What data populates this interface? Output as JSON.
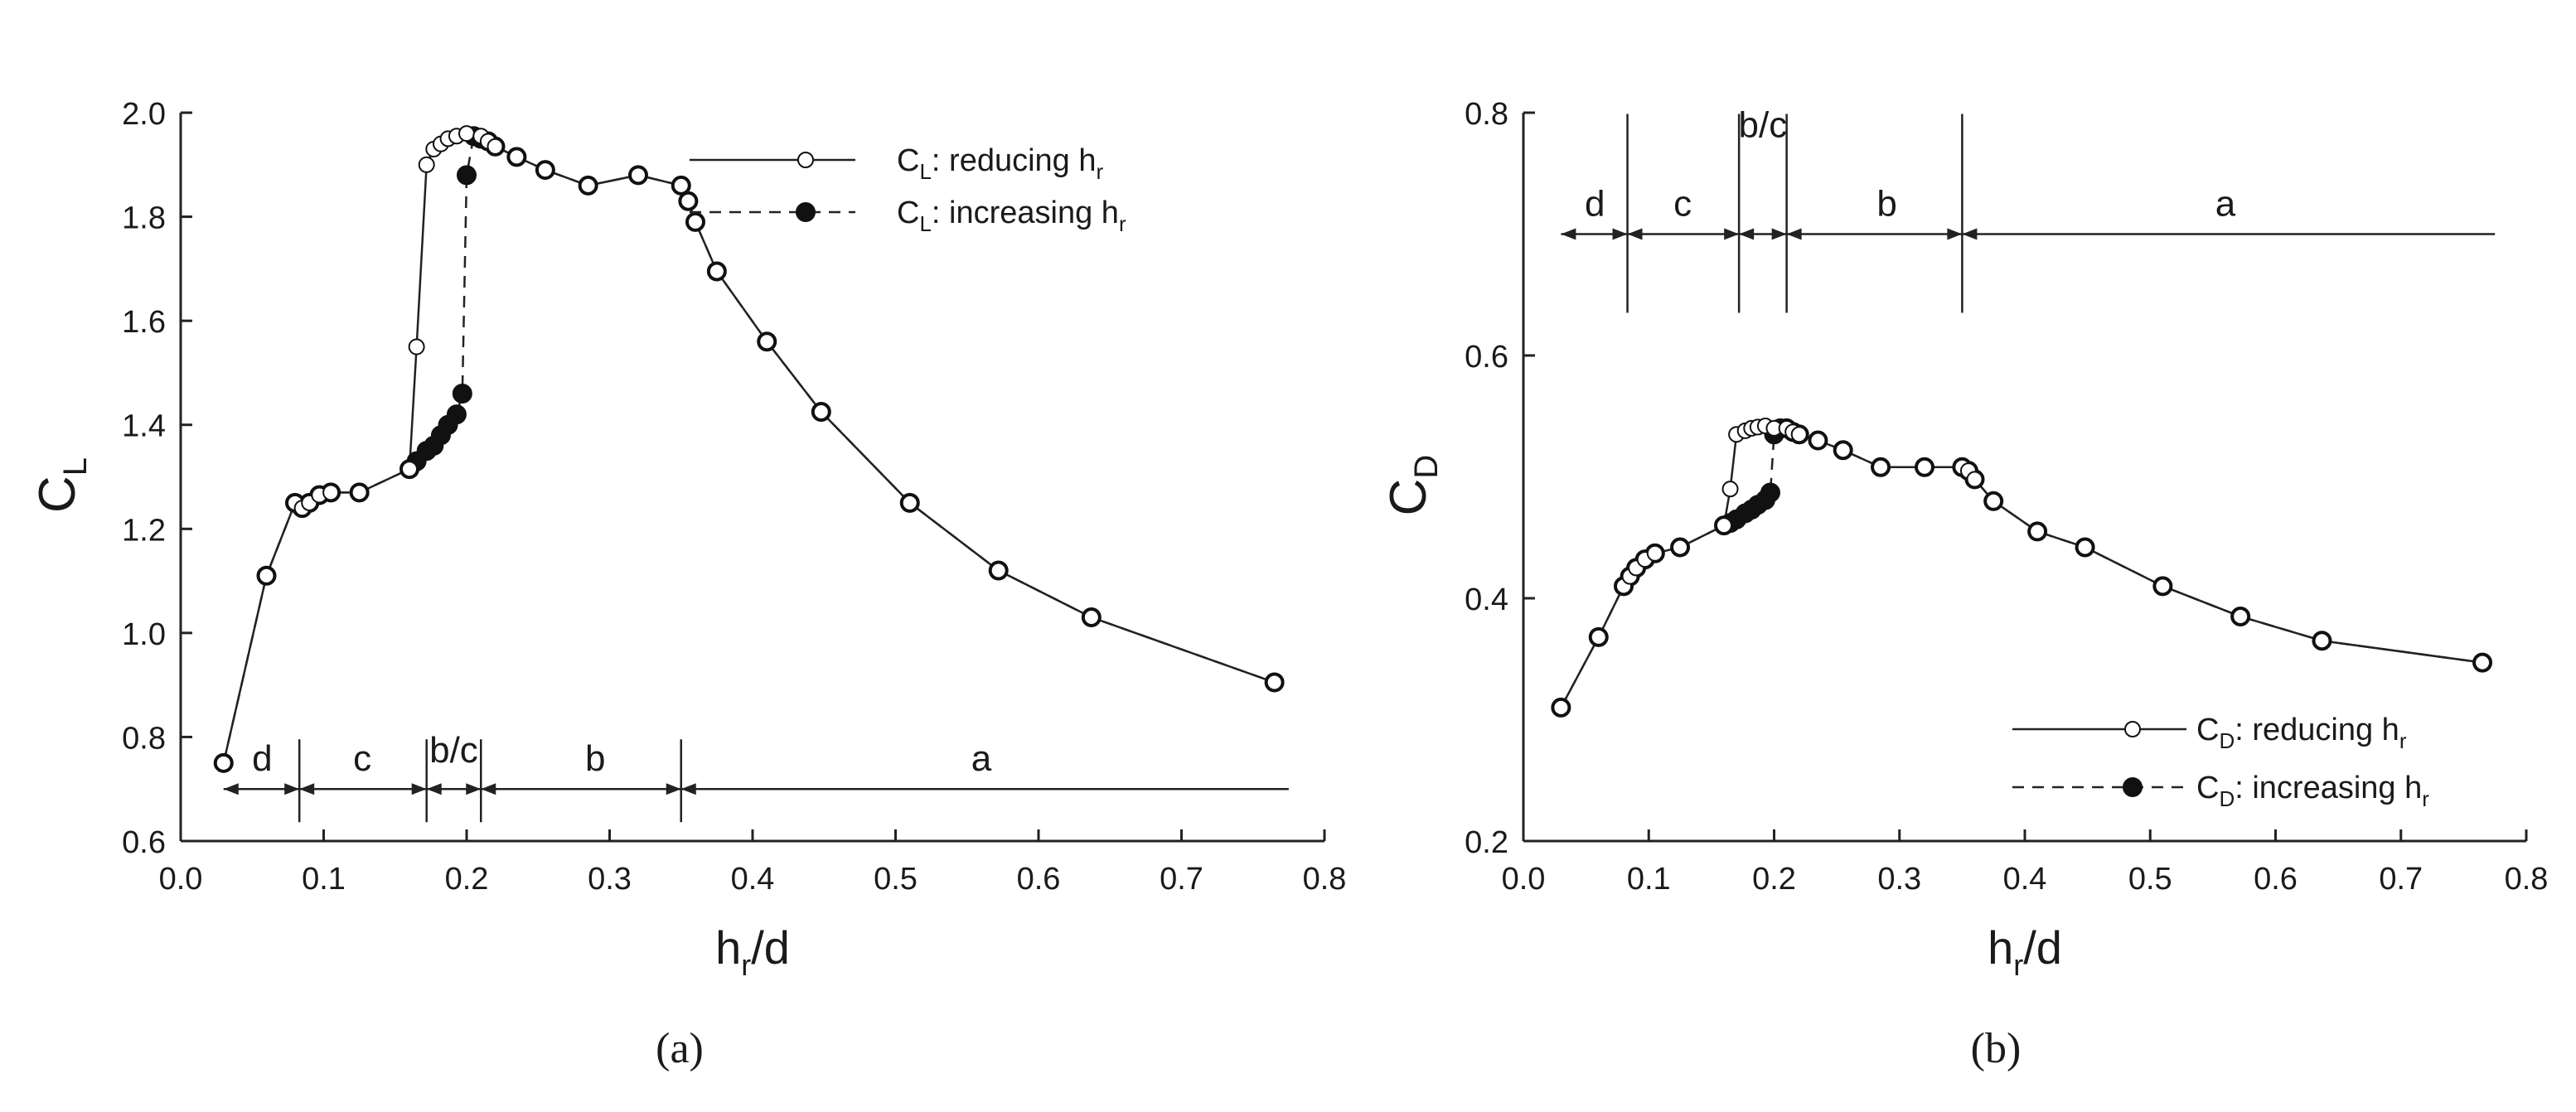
{
  "chart_data": [
    {
      "type": "line",
      "panel": "a",
      "caption": "(a)",
      "ylabel": {
        "main": "C",
        "sub": "L"
      },
      "xlabel": {
        "main": "h",
        "sub": "r",
        "rest": "/d"
      },
      "xlim": [
        0.0,
        0.8
      ],
      "ylim": [
        0.6,
        2.0
      ],
      "x_ticks": [
        "0.0",
        "0.1",
        "0.2",
        "0.3",
        "0.4",
        "0.5",
        "0.6",
        "0.7",
        "0.8"
      ],
      "y_ticks": [
        "0.6",
        "0.8",
        "1.0",
        "1.2",
        "1.4",
        "1.6",
        "1.8",
        "2.0"
      ],
      "grid": false,
      "legend_position": "top-right",
      "series": [
        {
          "name": "C_L: reducing h_r",
          "legend": {
            "main": "C",
            "sub": "L",
            "text": ": reducing h",
            "sub2": "r"
          },
          "line_style": "solid",
          "marker": "open-circle",
          "x": [
            0.03,
            0.06,
            0.08,
            0.085,
            0.09,
            0.097,
            0.105,
            0.125,
            0.16,
            0.165,
            0.172,
            0.177,
            0.182,
            0.187,
            0.193,
            0.2,
            0.21,
            0.215,
            0.22,
            0.235,
            0.255,
            0.285,
            0.32,
            0.35,
            0.355,
            0.36,
            0.375,
            0.41,
            0.448,
            0.51,
            0.572,
            0.637,
            0.765
          ],
          "y": [
            0.75,
            1.11,
            1.25,
            1.24,
            1.25,
            1.265,
            1.27,
            1.27,
            1.315,
            1.55,
            1.9,
            1.93,
            1.94,
            1.95,
            1.955,
            1.96,
            1.955,
            1.945,
            1.935,
            1.915,
            1.89,
            1.86,
            1.88,
            1.86,
            1.83,
            1.79,
            1.695,
            1.56,
            1.425,
            1.25,
            1.12,
            1.03,
            0.905
          ]
        },
        {
          "name": "C_L: increasing h_r",
          "legend": {
            "main": "C",
            "sub": "L",
            "text": ": increasing h",
            "sub2": "r"
          },
          "line_style": "dashed",
          "marker": "filled-circle",
          "x": [
            0.03,
            0.06,
            0.08,
            0.085,
            0.09,
            0.097,
            0.105,
            0.125,
            0.16,
            0.165,
            0.172,
            0.177,
            0.182,
            0.187,
            0.193,
            0.197,
            0.2,
            0.205,
            0.21,
            0.215,
            0.22,
            0.235,
            0.255,
            0.285,
            0.32,
            0.35,
            0.355,
            0.36,
            0.375,
            0.41,
            0.448,
            0.51,
            0.572,
            0.637,
            0.765
          ],
          "y": [
            0.75,
            1.11,
            1.25,
            1.24,
            1.25,
            1.265,
            1.27,
            1.27,
            1.315,
            1.33,
            1.35,
            1.36,
            1.38,
            1.4,
            1.42,
            1.46,
            1.88,
            1.955,
            1.95,
            1.945,
            1.935,
            1.915,
            1.89,
            1.86,
            1.88,
            1.86,
            1.83,
            1.79,
            1.695,
            1.56,
            1.425,
            1.25,
            1.12,
            1.03,
            0.905
          ]
        }
      ],
      "regions": {
        "y": 0.7,
        "boundaries": [
          0.083,
          0.172,
          0.21,
          0.35
        ],
        "x_start": 0.03,
        "x_end": 0.775,
        "labels": [
          {
            "text": "d",
            "x": 0.057
          },
          {
            "text": "c",
            "x": 0.127
          },
          {
            "text": "b/c",
            "x": 0.191,
            "above_boundaries": true
          },
          {
            "text": "b",
            "x": 0.29
          },
          {
            "text": "a",
            "x": 0.56
          }
        ]
      }
    },
    {
      "type": "line",
      "panel": "b",
      "caption": "(b)",
      "ylabel": {
        "main": "C",
        "sub": "D"
      },
      "xlabel": {
        "main": "h",
        "sub": "r",
        "rest": "/d"
      },
      "xlim": [
        0.0,
        0.8
      ],
      "ylim": [
        0.2,
        0.8
      ],
      "x_ticks": [
        "0.0",
        "0.1",
        "0.2",
        "0.3",
        "0.4",
        "0.5",
        "0.6",
        "0.7",
        "0.8"
      ],
      "y_ticks": [
        "0.2",
        "0.4",
        "0.6",
        "0.8"
      ],
      "grid": false,
      "legend_position": "bottom-right",
      "series": [
        {
          "name": "C_D: reducing h_r",
          "legend": {
            "main": "C",
            "sub": "D",
            "text": ": reducing h",
            "sub2": "r"
          },
          "line_style": "solid",
          "marker": "open-circle",
          "x": [
            0.03,
            0.06,
            0.08,
            0.085,
            0.09,
            0.097,
            0.105,
            0.125,
            0.16,
            0.165,
            0.17,
            0.177,
            0.182,
            0.187,
            0.193,
            0.2,
            0.21,
            0.215,
            0.22,
            0.235,
            0.255,
            0.285,
            0.32,
            0.35,
            0.355,
            0.36,
            0.375,
            0.41,
            0.448,
            0.51,
            0.572,
            0.637,
            0.765
          ],
          "y": [
            0.31,
            0.368,
            0.41,
            0.418,
            0.425,
            0.432,
            0.437,
            0.442,
            0.46,
            0.49,
            0.535,
            0.538,
            0.54,
            0.541,
            0.542,
            0.54,
            0.54,
            0.537,
            0.535,
            0.53,
            0.522,
            0.508,
            0.508,
            0.508,
            0.505,
            0.498,
            0.48,
            0.455,
            0.442,
            0.41,
            0.385,
            0.365,
            0.347
          ]
        },
        {
          "name": "C_D: increasing h_r",
          "legend": {
            "main": "C",
            "sub": "D",
            "text": ": increasing h",
            "sub2": "r"
          },
          "line_style": "dashed",
          "marker": "filled-circle",
          "x": [
            0.03,
            0.06,
            0.08,
            0.085,
            0.09,
            0.097,
            0.105,
            0.125,
            0.16,
            0.165,
            0.17,
            0.177,
            0.182,
            0.187,
            0.193,
            0.197,
            0.2,
            0.205,
            0.21,
            0.215,
            0.22,
            0.235,
            0.255,
            0.285,
            0.32,
            0.35,
            0.355,
            0.36,
            0.375,
            0.41,
            0.448,
            0.51,
            0.572,
            0.637,
            0.765
          ],
          "y": [
            0.31,
            0.368,
            0.41,
            0.418,
            0.425,
            0.432,
            0.437,
            0.442,
            0.46,
            0.462,
            0.465,
            0.47,
            0.473,
            0.477,
            0.481,
            0.487,
            0.535,
            0.54,
            0.54,
            0.537,
            0.535,
            0.53,
            0.522,
            0.508,
            0.508,
            0.508,
            0.505,
            0.498,
            0.48,
            0.455,
            0.442,
            0.41,
            0.385,
            0.365,
            0.347
          ]
        }
      ],
      "regions": {
        "y": 0.7,
        "boundaries": [
          0.083,
          0.172,
          0.21,
          0.35
        ],
        "x_start": 0.03,
        "x_end": 0.775,
        "labels": [
          {
            "text": "d",
            "x": 0.057
          },
          {
            "text": "c",
            "x": 0.127
          },
          {
            "text": "b/c",
            "x": 0.191,
            "above_boundaries": true
          },
          {
            "text": "b",
            "x": 0.29
          },
          {
            "text": "a",
            "x": 0.56
          }
        ]
      }
    }
  ]
}
